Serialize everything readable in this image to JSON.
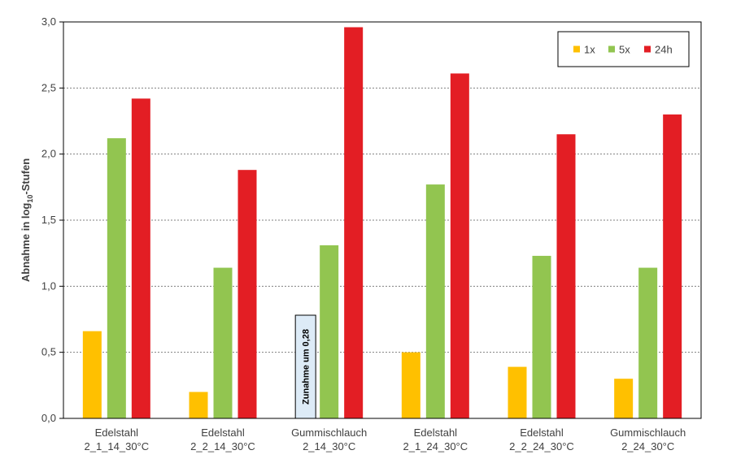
{
  "chart_data": {
    "type": "bar",
    "title": "",
    "xlabel": "",
    "ylabel": {
      "prefix": "Abnahme in log",
      "subscript": "10",
      "suffix": "-Stufen"
    },
    "ylim": [
      0,
      3.0
    ],
    "yticks": [
      "0,0",
      "0,5",
      "1,0",
      "1,5",
      "2,0",
      "2,5",
      "3,0"
    ],
    "grid": "horizontal-dotted",
    "legend_position": "top-right",
    "categories": [
      {
        "line1": "Edelstahl",
        "line2": "2_1_14_30°C"
      },
      {
        "line1": "Edelstahl",
        "line2": "2_2_14_30°C"
      },
      {
        "line1": "Gummischlauch",
        "line2": "2_14_30°C"
      },
      {
        "line1": "Edelstahl",
        "line2": "2_1_24_30°C"
      },
      {
        "line1": "Edelstahl",
        "line2": "2_2_24_30°C"
      },
      {
        "line1": "Gummischlauch",
        "line2": "2_24_30°C"
      }
    ],
    "series": [
      {
        "name": "1x",
        "color": "#FFC000",
        "values": [
          0.66,
          0.2,
          null,
          0.5,
          0.39,
          0.3
        ]
      },
      {
        "name": "5x",
        "color": "#92C550",
        "values": [
          2.12,
          1.14,
          1.31,
          1.77,
          1.23,
          1.14
        ]
      },
      {
        "name": "24h",
        "color": "#E31E24",
        "values": [
          2.42,
          1.88,
          2.96,
          2.61,
          2.15,
          2.3
        ]
      }
    ],
    "annotations": [
      {
        "category_index": 2,
        "series_index": 0,
        "text": "Zunahme um 0,28",
        "box_color": "#DDEBF7"
      }
    ]
  }
}
